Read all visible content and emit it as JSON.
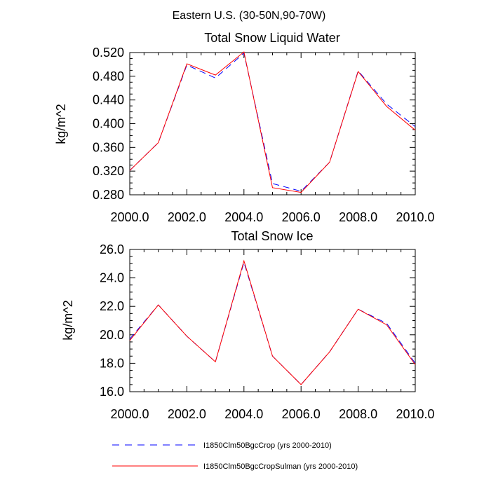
{
  "figure": {
    "main_title": "Eastern U.S. (30-50N,90-70W)"
  },
  "chart_data": [
    {
      "type": "line",
      "title": "Total Snow Liquid Water",
      "xlabel": "",
      "ylabel": "kg/m^2",
      "xlim": [
        2000,
        2010
      ],
      "ylim": [
        0.28,
        0.52
      ],
      "x_ticks": [
        2000,
        2002,
        2004,
        2006,
        2008,
        2010
      ],
      "x_tick_labels": [
        "2000.0",
        "2002.0",
        "2004.0",
        "2006.0",
        "2008.0",
        "2010.0"
      ],
      "y_ticks": [
        0.28,
        0.32,
        0.36,
        0.4,
        0.44,
        0.48,
        0.52
      ],
      "y_tick_labels": [
        "0.280",
        "0.320",
        "0.360",
        "0.400",
        "0.440",
        "0.480",
        "0.520"
      ],
      "x": [
        2000,
        2001,
        2002,
        2003,
        2004,
        2005,
        2006,
        2007,
        2008,
        2009,
        2010
      ],
      "series": [
        {
          "name": "I1850Clm50BgcCrop (yrs 2000-2010)",
          "color": "#0000ff",
          "dash": "dashed",
          "values": [
            0.321,
            0.368,
            0.499,
            0.477,
            0.519,
            0.299,
            0.286,
            0.335,
            0.489,
            0.433,
            0.395
          ]
        },
        {
          "name": "I1850Clm50BgcCropSulman (yrs 2000-2010)",
          "color": "#ff0000",
          "dash": "solid",
          "values": [
            0.321,
            0.368,
            0.501,
            0.482,
            0.521,
            0.292,
            0.284,
            0.335,
            0.488,
            0.429,
            0.389
          ]
        }
      ]
    },
    {
      "type": "line",
      "title": "Total Snow Ice",
      "xlabel": "",
      "ylabel": "kg/m^2",
      "xlim": [
        2000,
        2010
      ],
      "ylim": [
        16,
        26
      ],
      "x_ticks": [
        2000,
        2002,
        2004,
        2006,
        2008,
        2010
      ],
      "x_tick_labels": [
        "2000.0",
        "2002.0",
        "2004.0",
        "2006.0",
        "2008.0",
        "2010.0"
      ],
      "y_ticks": [
        16,
        18,
        20,
        22,
        24,
        26
      ],
      "y_tick_labels": [
        "16.0",
        "18.0",
        "20.0",
        "22.0",
        "24.0",
        "26.0"
      ],
      "x": [
        2000,
        2001,
        2002,
        2003,
        2004,
        2005,
        2006,
        2007,
        2008,
        2009,
        2010
      ],
      "series": [
        {
          "name": "I1850Clm50BgcCrop (yrs 2000-2010)",
          "color": "#0000ff",
          "dash": "dashed",
          "values": [
            19.7,
            22.1,
            19.9,
            18.1,
            25.1,
            18.5,
            16.5,
            18.8,
            21.8,
            20.8,
            18.0
          ]
        },
        {
          "name": "I1850Clm50BgcCropSulman (yrs 2000-2010)",
          "color": "#ff0000",
          "dash": "solid",
          "values": [
            19.6,
            22.1,
            19.9,
            18.1,
            25.2,
            18.5,
            16.5,
            18.8,
            21.8,
            20.7,
            17.9
          ]
        }
      ]
    }
  ],
  "legend": {
    "placement": "bottom",
    "items": [
      {
        "label": "I1850Clm50BgcCrop (yrs 2000-2010)",
        "color": "#0000ff",
        "dash": "dashed"
      },
      {
        "label": "I1850Clm50BgcCropSulman (yrs 2000-2010)",
        "color": "#ff0000",
        "dash": "solid"
      }
    ]
  }
}
